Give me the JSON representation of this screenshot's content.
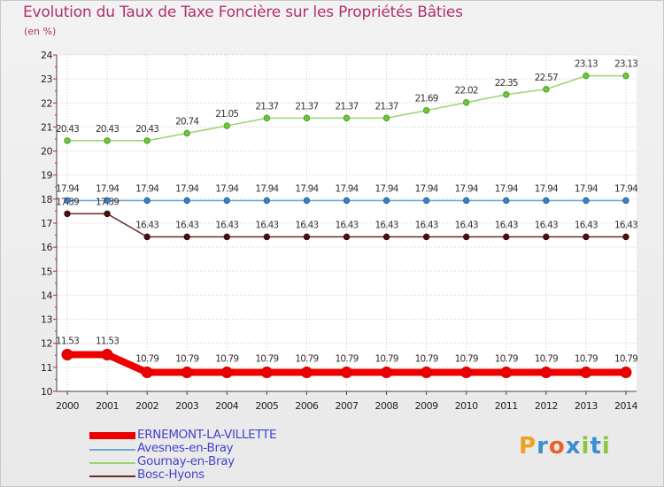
{
  "header": {
    "title": "Evolution du Taux de Taxe Foncière sur les Propriétés Bâties",
    "unit": "(en %)"
  },
  "logo": {
    "letters": [
      "P",
      "r",
      "o",
      "x",
      "i",
      "t",
      "i"
    ],
    "colors": [
      "#f0a020",
      "#3a8fd0",
      "#e8632a",
      "#3a8fd0",
      "#8cc63f",
      "#3a8fd0",
      "#8cc63f"
    ]
  },
  "chart_data": {
    "type": "line",
    "title": "Evolution du Taux de Taxe Foncière sur les Propriétés Bâties",
    "ylabel": "(en %)",
    "xlabel": "",
    "ylim": [
      10,
      24
    ],
    "yticks": [
      "10",
      "11",
      "12",
      "13",
      "14",
      "15",
      "16",
      "17",
      "18",
      "19",
      "20",
      "21",
      "22",
      "23",
      "24"
    ],
    "categories": [
      "2000",
      "2001",
      "2002",
      "2003",
      "2004",
      "2005",
      "2006",
      "2007",
      "2008",
      "2009",
      "2010",
      "2011",
      "2012",
      "2013",
      "2014"
    ],
    "series": [
      {
        "name": "ERNEMONT-LA-VILLETTE",
        "color": "#ee0000",
        "values": [
          11.53,
          11.53,
          10.79,
          10.79,
          10.79,
          10.79,
          10.79,
          10.79,
          10.79,
          10.79,
          10.79,
          10.79,
          10.79,
          10.79,
          10.79
        ],
        "labels": [
          "11.53",
          "11.53",
          "10.79",
          "10.79",
          "10.79",
          "10.79",
          "10.79",
          "10.79",
          "10.79",
          "10.79",
          "10.79",
          "10.79",
          "10.79",
          "10.79",
          "10.79"
        ]
      },
      {
        "name": "Avesnes-en-Bray",
        "color": "#6fa8dc",
        "values": [
          17.94,
          17.94,
          17.94,
          17.94,
          17.94,
          17.94,
          17.94,
          17.94,
          17.94,
          17.94,
          17.94,
          17.94,
          17.94,
          17.94,
          17.94
        ],
        "labels": [
          "17.94",
          "17.94",
          "17.94",
          "17.94",
          "17.94",
          "17.94",
          "17.94",
          "17.94",
          "17.94",
          "17.94",
          "17.94",
          "17.94",
          "17.94",
          "17.94",
          "17.94"
        ]
      },
      {
        "name": "Gournay-en-Bray",
        "color": "#9ed36a",
        "values": [
          20.43,
          20.43,
          20.43,
          20.74,
          21.05,
          21.37,
          21.37,
          21.37,
          21.37,
          21.69,
          22.02,
          22.35,
          22.57,
          23.13,
          23.13
        ],
        "labels": [
          "20.43",
          "20.43",
          "20.43",
          "20.74",
          "21.05",
          "21.37",
          "21.37",
          "21.37",
          "21.37",
          "21.69",
          "22.02",
          "22.35",
          "22.57",
          "23.13",
          "23.13"
        ]
      },
      {
        "name": "Bosc-Hyons",
        "color": "#6b2a2a",
        "values": [
          17.39,
          17.39,
          16.43,
          16.43,
          16.43,
          16.43,
          16.43,
          16.43,
          16.43,
          16.43,
          16.43,
          16.43,
          16.43,
          16.43,
          16.43
        ],
        "labels": [
          "17.39",
          "17.39",
          "16.43",
          "16.43",
          "16.43",
          "16.43",
          "16.43",
          "16.43",
          "16.43",
          "16.43",
          "16.43",
          "16.43",
          "16.43",
          "16.43",
          "16.43"
        ]
      }
    ]
  }
}
